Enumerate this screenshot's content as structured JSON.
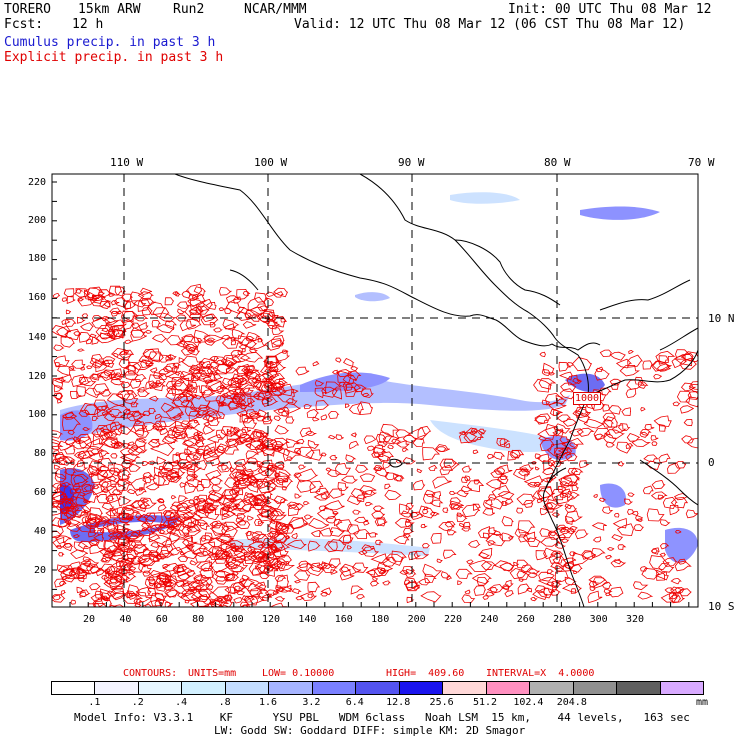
{
  "header": {
    "model": "TORERO",
    "resolution": "15km ARW",
    "run": "Run2",
    "org": "NCAR/MMM",
    "init": "Init: 00 UTC Thu 08 Mar 12",
    "fcst_label": "Fcst:",
    "fcst_value": "12 h",
    "valid": "Valid: 12 UTC Thu 08 Mar 12 (06 CST Thu 08 Mar 12)",
    "field1": "Cumulus precip. in past 3 h",
    "field2": "Explicit precip. in past 3 h"
  },
  "map": {
    "top_lon_labels": [
      "110 W",
      "100 W",
      "90 W",
      "80 W",
      "70 W"
    ],
    "right_lat_labels": [
      "10 N",
      "0",
      "10 S"
    ],
    "left_ticks": [
      "220",
      "200",
      "180",
      "160",
      "140",
      "120",
      "100",
      "80",
      "60",
      "40",
      "20"
    ],
    "bottom_ticks": [
      "20",
      "40",
      "60",
      "80",
      "100",
      "120",
      "140",
      "160",
      "180",
      "200",
      "220",
      "240",
      "260",
      "280",
      "300",
      "320"
    ],
    "contour_label": "1000",
    "colors": {
      "coast": "#000000",
      "contour": "#ee0000",
      "grid": "#000000"
    }
  },
  "legend_caption": {
    "contours": "CONTOURS:",
    "units": "UNITS=mm",
    "low": "LOW= 0.10000",
    "high": "HIGH=  409.60",
    "interval": "INTERVAL=X  4.0000"
  },
  "colorbar": {
    "colors": [
      "#ffffff",
      "#f4f4ff",
      "#e6f6ff",
      "#d2f0ff",
      "#c4ddff",
      "#a6b4ff",
      "#7a80ff",
      "#5454f0",
      "#1a14ee",
      "#ffd8d8",
      "#ff90c0",
      "#b0b0b0",
      "#909090",
      "#606060",
      "#d8aaff"
    ],
    "labels": [
      ".1",
      ".2",
      ".4",
      ".8",
      "1.6",
      "3.2",
      "6.4",
      "12.8",
      "25.6",
      "51.2",
      "102.4",
      "204.8"
    ],
    "unit": "mm"
  },
  "footer": {
    "line1": "Model Info: V3.3.1    KF      YSU PBL   WDM 6class   Noah LSM  15 km,    44 levels,   163 sec",
    "line2": "LW: Godd SW: Goddard DIFF: simple KM: 2D Smagor"
  }
}
